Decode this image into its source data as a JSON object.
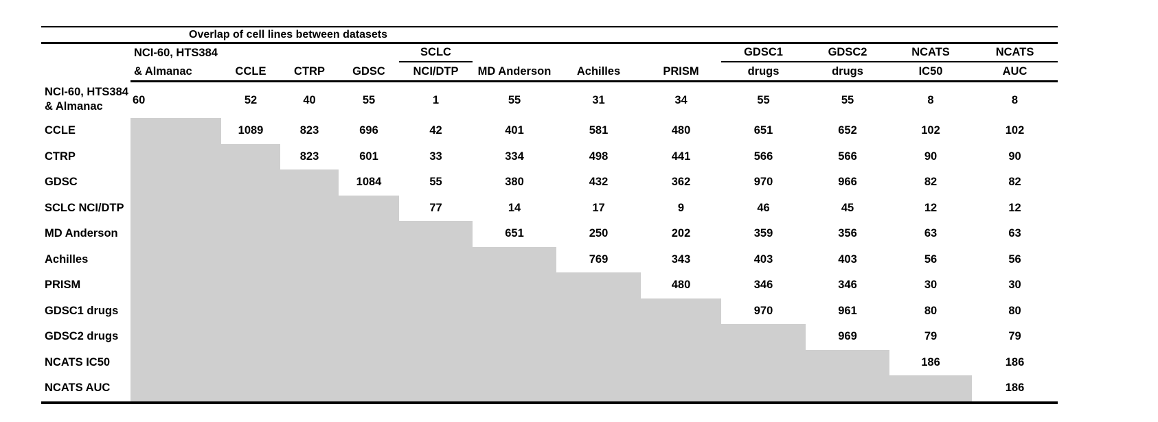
{
  "table": {
    "title": "Overlap of cell lines between datasets",
    "column_headers": [
      {
        "line1": "NCI-60, HTS384",
        "line2": "& Almanac",
        "underline": false,
        "align": "left"
      },
      {
        "line1": "",
        "line2": "CCLE",
        "underline": false,
        "align": "center"
      },
      {
        "line1": "",
        "line2": "CTRP",
        "underline": false,
        "align": "center"
      },
      {
        "line1": "",
        "line2": "GDSC",
        "underline": false,
        "align": "center"
      },
      {
        "line1": "SCLC",
        "line2": "NCI/DTP",
        "underline": true,
        "align": "center"
      },
      {
        "line1": "",
        "line2": "MD Anderson",
        "underline": false,
        "align": "center"
      },
      {
        "line1": "",
        "line2": "Achilles",
        "underline": false,
        "align": "center"
      },
      {
        "line1": "",
        "line2": "PRISM",
        "underline": false,
        "align": "center"
      },
      {
        "line1": "GDSC1",
        "line2": "drugs",
        "underline": true,
        "align": "center"
      },
      {
        "line1": "GDSC2",
        "line2": "drugs",
        "underline": true,
        "align": "center"
      },
      {
        "line1": "NCATS",
        "line2": "IC50",
        "underline": true,
        "align": "center"
      },
      {
        "line1": "NCATS",
        "line2": "AUC",
        "underline": true,
        "align": "center"
      }
    ],
    "rows": [
      {
        "label": "NCI-60, HTS384",
        "label2": "& Almanac"
      },
      {
        "label": "CCLE"
      },
      {
        "label": "CTRP"
      },
      {
        "label": "GDSC"
      },
      {
        "label": "SCLC NCI/DTP"
      },
      {
        "label": "MD Anderson"
      },
      {
        "label": "Achilles"
      },
      {
        "label": "PRISM"
      },
      {
        "label": "GDSC1 drugs"
      },
      {
        "label": "GDSC2 drugs"
      },
      {
        "label": "NCATS IC50"
      },
      {
        "label": "NCATS AUC"
      }
    ]
  },
  "colors": {
    "shaded_cell": "#cfcfcf",
    "border": "#000000",
    "text": "#000000",
    "background": "#ffffff"
  },
  "chart_data": {
    "type": "table",
    "title": "Overlap of cell lines between datasets",
    "columns": [
      "NCI-60, HTS384 & Almanac",
      "CCLE",
      "CTRP",
      "GDSC",
      "SCLC NCI/DTP",
      "MD Anderson",
      "Achilles",
      "PRISM",
      "GDSC1 drugs",
      "GDSC2 drugs",
      "NCATS IC50",
      "NCATS AUC"
    ],
    "rows": [
      "NCI-60, HTS384 & Almanac",
      "CCLE",
      "CTRP",
      "GDSC",
      "SCLC NCI/DTP",
      "MD Anderson",
      "Achilles",
      "PRISM",
      "GDSC1 drugs",
      "GDSC2 drugs",
      "NCATS IC50",
      "NCATS AUC"
    ],
    "matrix": [
      [
        60,
        52,
        40,
        55,
        1,
        55,
        31,
        34,
        55,
        55,
        8,
        8
      ],
      [
        null,
        1089,
        823,
        696,
        42,
        401,
        581,
        480,
        651,
        652,
        102,
        102
      ],
      [
        null,
        null,
        823,
        601,
        33,
        334,
        498,
        441,
        566,
        566,
        90,
        90
      ],
      [
        null,
        null,
        null,
        1084,
        55,
        380,
        432,
        362,
        970,
        966,
        82,
        82
      ],
      [
        null,
        null,
        null,
        null,
        77,
        14,
        17,
        9,
        46,
        45,
        12,
        12
      ],
      [
        null,
        null,
        null,
        null,
        null,
        651,
        250,
        202,
        359,
        356,
        63,
        63
      ],
      [
        null,
        null,
        null,
        null,
        null,
        null,
        769,
        343,
        403,
        403,
        56,
        56
      ],
      [
        null,
        null,
        null,
        null,
        null,
        null,
        null,
        480,
        346,
        346,
        30,
        30
      ],
      [
        null,
        null,
        null,
        null,
        null,
        null,
        null,
        null,
        970,
        961,
        80,
        80
      ],
      [
        null,
        null,
        null,
        null,
        null,
        null,
        null,
        null,
        null,
        969,
        79,
        79
      ],
      [
        null,
        null,
        null,
        null,
        null,
        null,
        null,
        null,
        null,
        null,
        186,
        186
      ],
      [
        null,
        null,
        null,
        null,
        null,
        null,
        null,
        null,
        null,
        null,
        null,
        186
      ]
    ]
  }
}
